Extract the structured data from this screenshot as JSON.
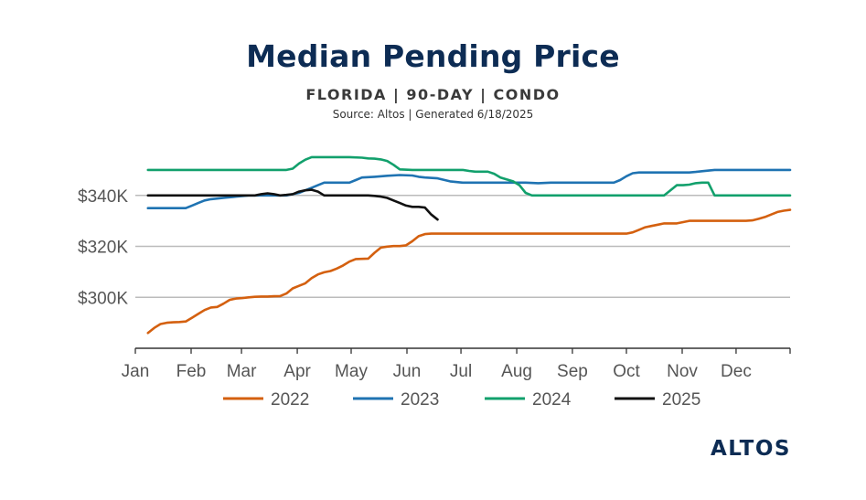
{
  "header": {
    "title": "Median Pending Price",
    "subtitle": "FLORIDA | 90-DAY | CONDO",
    "source": "Source: Altos  | Generated 6/18/2025"
  },
  "logo": {
    "text": "ALTOS"
  },
  "colors": {
    "2022": "#d4600f",
    "2023": "#1f73b2",
    "2024": "#12a06c",
    "2025": "#111111",
    "grid": "#bbbbbb",
    "axis": "#333333",
    "title": "#0d2c54"
  },
  "chart_data": {
    "type": "line",
    "title": "Median Pending Price",
    "xlabel": "",
    "ylabel": "",
    "x_unit": "week of year",
    "xlim": [
      0,
      52
    ],
    "ylim": [
      280000,
      360000
    ],
    "grid": true,
    "legend_position": "bottom",
    "x_ticks": [
      {
        "label": "Jan",
        "value": 0
      },
      {
        "label": "Feb",
        "value": 4.43
      },
      {
        "label": "Mar",
        "value": 8.43
      },
      {
        "label": "Apr",
        "value": 12.86
      },
      {
        "label": "May",
        "value": 17.14
      },
      {
        "label": "Jun",
        "value": 21.57
      },
      {
        "label": "Jul",
        "value": 25.86
      },
      {
        "label": "Aug",
        "value": 30.29
      },
      {
        "label": "Sep",
        "value": 34.71
      },
      {
        "label": "Oct",
        "value": 39
      },
      {
        "label": "Nov",
        "value": 43.43
      },
      {
        "label": "Dec",
        "value": 47.71
      }
    ],
    "y_ticks": [
      {
        "label": "$300K",
        "value": 300000
      },
      {
        "label": "$320K",
        "value": 320000
      },
      {
        "label": "$340K",
        "value": 340000
      }
    ],
    "series": [
      {
        "name": "2022",
        "color": "#d4600f",
        "x": [
          1,
          1.5,
          2,
          2.5,
          3,
          3.5,
          4,
          4.5,
          5,
          5.5,
          6,
          6.5,
          7,
          7.5,
          8,
          8.5,
          9,
          9.5,
          10,
          10.5,
          11,
          11.5,
          12,
          12.5,
          13,
          13.5,
          14,
          14.5,
          15,
          15.5,
          16,
          16.5,
          17,
          17.5,
          18,
          18.5,
          19,
          19.5,
          20,
          20.5,
          21,
          21.5,
          22,
          22.5,
          23,
          23.5,
          24,
          24.5,
          25,
          25.5,
          26,
          27,
          28,
          29,
          30,
          31,
          32,
          33,
          34,
          35,
          36,
          37,
          38,
          39,
          39.5,
          40,
          40.5,
          41,
          41.5,
          42,
          42.5,
          43,
          43.5,
          44,
          44.5,
          45,
          45.5,
          46,
          46.5,
          47,
          47.5,
          48,
          48.5,
          49,
          49.5,
          50,
          50.5,
          51,
          51.5,
          52
        ],
        "values": [
          286000,
          288000,
          289500,
          290000,
          290200,
          290300,
          290500,
          292000,
          293500,
          295000,
          296000,
          296200,
          297500,
          299000,
          299500,
          299700,
          300000,
          300200,
          300300,
          300300,
          300400,
          300500,
          301500,
          303500,
          304500,
          305500,
          307500,
          309000,
          309800,
          310300,
          311300,
          312500,
          314000,
          315000,
          315100,
          315200,
          317500,
          319500,
          319900,
          320100,
          320100,
          320400,
          322000,
          324000,
          324800,
          325000,
          325000,
          325000,
          325000,
          325000,
          325000,
          325000,
          325000,
          325000,
          325000,
          325000,
          325000,
          325000,
          325000,
          325000,
          325000,
          325000,
          325000,
          325000,
          325500,
          326500,
          327500,
          328000,
          328500,
          329000,
          329000,
          329000,
          329500,
          330000,
          330000,
          330000,
          330000,
          330000,
          330000,
          330000,
          330000,
          330000,
          330000,
          330200,
          330800,
          331500,
          332500,
          333500,
          334000,
          334300
        ]
      },
      {
        "name": "2023",
        "color": "#1f73b2",
        "x": [
          1,
          2,
          3,
          4,
          4.5,
          5,
          5.5,
          6,
          7,
          8,
          9,
          10,
          11,
          12,
          13,
          13.5,
          14,
          14.5,
          15,
          16,
          17,
          17.5,
          18,
          19,
          20,
          21,
          22,
          22.5,
          23,
          24,
          25,
          26,
          27,
          28,
          29,
          30,
          31,
          32,
          33,
          34,
          35,
          36,
          37,
          38,
          38.5,
          39,
          39.5,
          40,
          41,
          42,
          43,
          44,
          44.5,
          45,
          46,
          47,
          48,
          49,
          50,
          51,
          52
        ],
        "values": [
          335000,
          335000,
          335000,
          335000,
          336000,
          337000,
          338000,
          338500,
          339000,
          339500,
          340000,
          340000,
          340000,
          340000,
          341000,
          342000,
          343000,
          344000,
          345000,
          345000,
          345000,
          346000,
          347000,
          347300,
          347700,
          348000,
          347800,
          347300,
          347000,
          346700,
          345500,
          345000,
          345000,
          345000,
          345000,
          345000,
          345000,
          344800,
          345000,
          345000,
          345000,
          345000,
          345000,
          345000,
          346000,
          347500,
          348700,
          349000,
          349000,
          349000,
          349000,
          349000,
          349200,
          349500,
          350000,
          350000,
          350000,
          350000,
          350000,
          350000,
          350000
        ]
      },
      {
        "name": "2024",
        "color": "#12a06c",
        "x": [
          1,
          2,
          3,
          4,
          5,
          6,
          7,
          8,
          9,
          10,
          11,
          12,
          12.5,
          13,
          13.5,
          14,
          15,
          16,
          17,
          18,
          18.5,
          19,
          19.5,
          20,
          20.5,
          21,
          22,
          23,
          24,
          25,
          26,
          26.5,
          27,
          28,
          28.5,
          29,
          30,
          30.5,
          31,
          31.5,
          32,
          33,
          34,
          35,
          36,
          37,
          38,
          39,
          40,
          41,
          41.5,
          42,
          43,
          43.5,
          44,
          44.5,
          45,
          45.5,
          46,
          47,
          48,
          49,
          50,
          51,
          52
        ],
        "values": [
          350000,
          350000,
          350000,
          350000,
          350000,
          350000,
          350000,
          350000,
          350000,
          350000,
          350000,
          350000,
          350500,
          352500,
          354000,
          355000,
          355000,
          355000,
          355000,
          354800,
          354500,
          354400,
          354100,
          353500,
          352000,
          350200,
          350000,
          350000,
          350000,
          350000,
          350000,
          349600,
          349300,
          349300,
          348500,
          347000,
          345500,
          344000,
          341000,
          340000,
          340000,
          340000,
          340000,
          340000,
          340000,
          340000,
          340000,
          340000,
          340000,
          340000,
          340000,
          340000,
          344000,
          344000,
          344200,
          344800,
          345000,
          345000,
          340000,
          340000,
          340000,
          340000,
          340000,
          340000,
          340000
        ]
      },
      {
        "name": "2025",
        "color": "#111111",
        "x": [
          1,
          2,
          3,
          4,
          5,
          6,
          7,
          8,
          8.5,
          9,
          9.5,
          10,
          10.5,
          11,
          11.5,
          12,
          12.5,
          13,
          13.5,
          14,
          14.5,
          15,
          15.5,
          16,
          17,
          18,
          18.5,
          19,
          19.5,
          20,
          20.5,
          21,
          21.5,
          22,
          22.5,
          23,
          23.5,
          24
        ],
        "values": [
          340000,
          340000,
          340000,
          340000,
          340000,
          340000,
          340000,
          340000,
          340000,
          340000,
          340000,
          340500,
          340800,
          340500,
          340000,
          340200,
          340500,
          341500,
          342000,
          342200,
          341500,
          340000,
          340000,
          340000,
          340000,
          340000,
          340000,
          339800,
          339500,
          339000,
          338000,
          337000,
          336000,
          335500,
          335500,
          335200,
          332500,
          330500
        ]
      }
    ]
  }
}
